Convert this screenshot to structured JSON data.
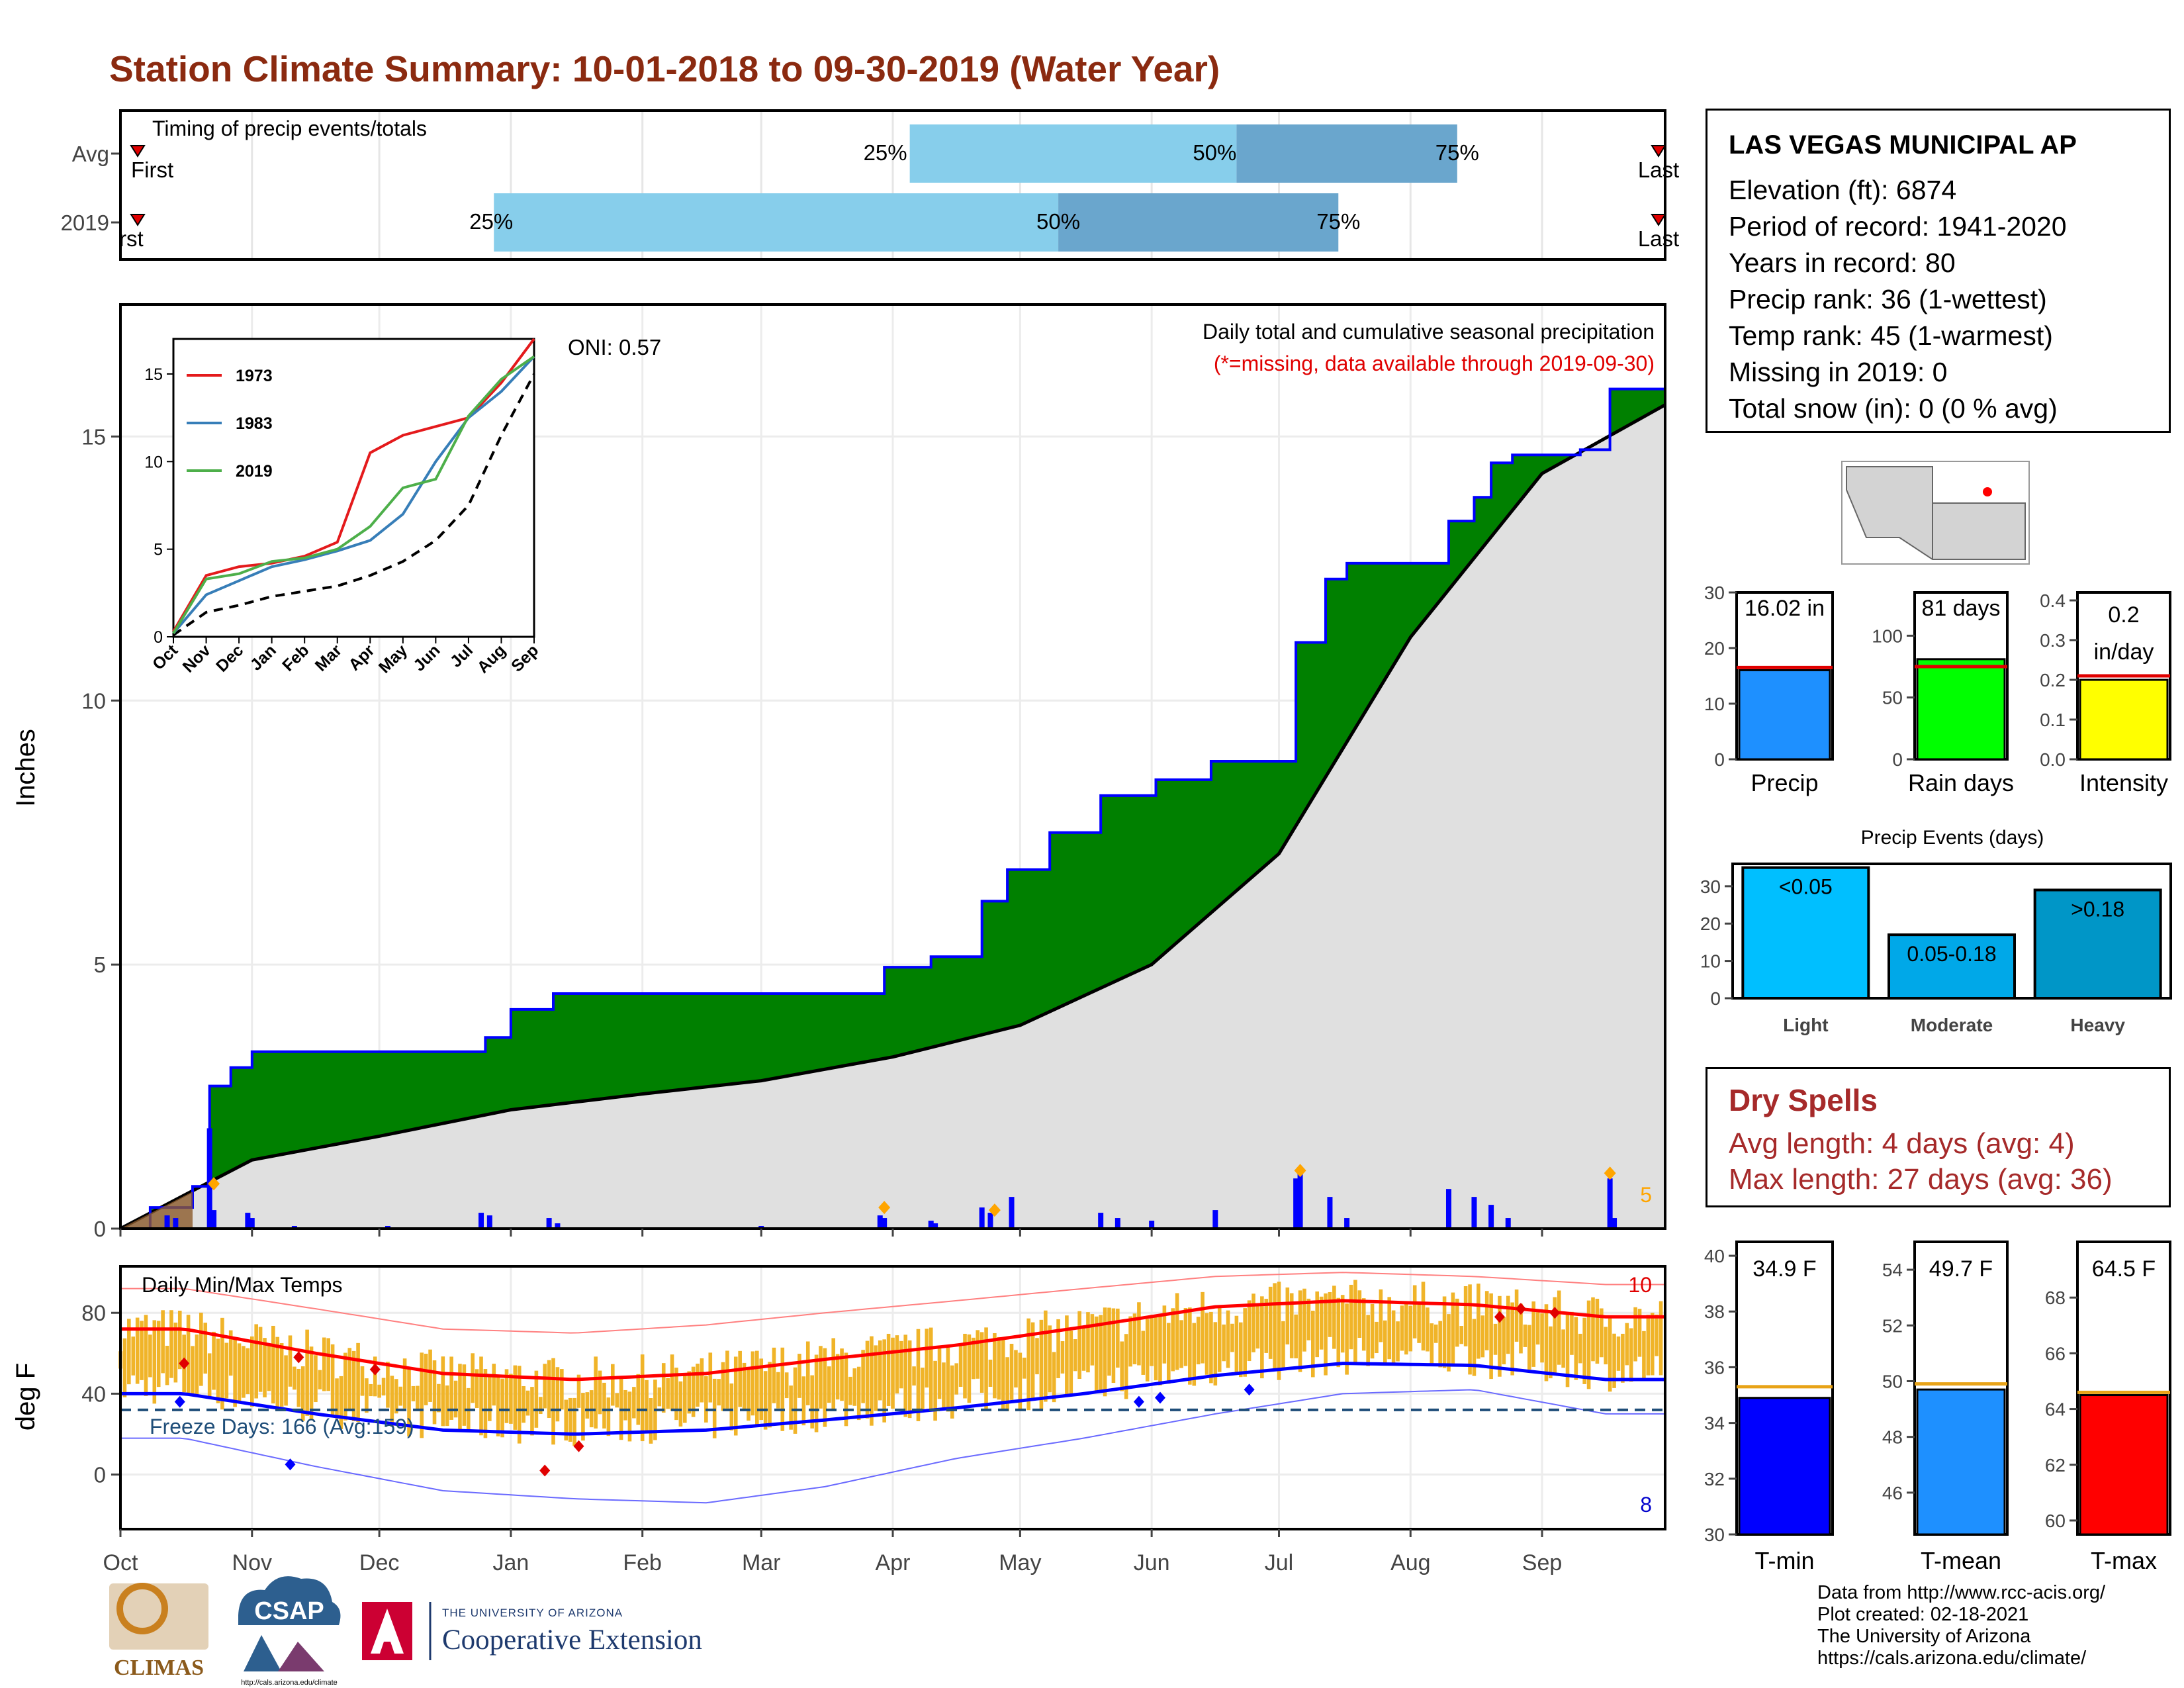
{
  "title": "Station Climate Summary: 10-01-2018 to 09-30-2019 (Water Year)",
  "station": {
    "name": "LAS VEGAS MUNICIPAL AP",
    "lines": [
      "Elevation (ft): 6874",
      "Period of record: 1941-2020",
      "Years in record: 80",
      "Precip rank: 36 (1-wettest)",
      "Temp rank: 45 (1-warmest)",
      "Missing in 2019: 0",
      "Total snow (in): 0 (0 % avg)"
    ]
  },
  "dry_spells": {
    "title": "Dry Spells",
    "avg_length": "Avg length: 4 days (avg: 4)",
    "max_length": "Max length: 27 days (avg: 36)"
  },
  "footer": {
    "lines": [
      "Data from http://www.rcc-acis.org/",
      "Plot created: 02-18-2021",
      "The University of Arizona",
      "https://cals.arizona.edu/climate/"
    ]
  },
  "logos": {
    "climas": "CLIMAS",
    "csap": "CSAP",
    "csap_url": "http://cals.arizona.edu/climate",
    "ua_small": "THE UNIVERSITY OF ARIZONA",
    "ua_big": "Cooperative Extension"
  },
  "colors": {
    "title": "#8b2a10",
    "accent_green": "#008000",
    "precip_blue": "#0000ff",
    "normal_gray": "#e0e0e0",
    "timing_light": "#87ceeb",
    "timing_dark": "#6aa6cd",
    "temp_bar": "#f0b429",
    "tmax_line": "#ff0000",
    "tmin_line": "#0000ff",
    "dry_text": "#a62a2a"
  },
  "chart_data": [
    {
      "type": "bar",
      "panel": "timing",
      "title": "Timing of precip events/totals",
      "categories": [
        "Avg",
        "2019"
      ],
      "markers": {
        "first": "First",
        "first_2019": "rst",
        "last": "Last"
      },
      "percentile_labels": [
        "25%",
        "50%",
        "75%"
      ],
      "rows": [
        {
          "label": "Avg",
          "first_date": "2018-10-01",
          "p25": "2019-04-05",
          "p50": "2019-06-21",
          "p75": "2019-08-12",
          "last_date": "2019-09-30"
        },
        {
          "label": "2019",
          "first_date": "2018-10-01",
          "p25": "2018-12-28",
          "p50": "2019-05-10",
          "p75": "2019-07-15",
          "last_date": "2019-09-30"
        }
      ]
    },
    {
      "type": "area",
      "panel": "precipitation",
      "title": "Daily total and cumulative seasonal precipitation",
      "subtitle": "(*=missing, data available through 2019-09-30)",
      "oni": "ONI: 0.57",
      "ylabel": "Inches",
      "ylim": [
        0,
        17.5
      ],
      "yticks": [
        0,
        5,
        10,
        15
      ],
      "count_label": "5",
      "cumulative_2019": [
        [
          "2018-10-01",
          0
        ],
        [
          "2018-10-08",
          0.4
        ],
        [
          "2018-10-18",
          0.8
        ],
        [
          "2018-10-22",
          2.7
        ],
        [
          "2018-10-27",
          3.05
        ],
        [
          "2018-11-01",
          3.35
        ],
        [
          "2018-12-26",
          3.62
        ],
        [
          "2019-01-01",
          4.15
        ],
        [
          "2019-01-11",
          4.45
        ],
        [
          "2019-03-30",
          4.95
        ],
        [
          "2019-04-10",
          5.15
        ],
        [
          "2019-04-22",
          6.2
        ],
        [
          "2019-04-28",
          6.8
        ],
        [
          "2019-05-08",
          7.5
        ],
        [
          "2019-05-20",
          8.2
        ],
        [
          "2019-06-02",
          8.5
        ],
        [
          "2019-06-15",
          8.85
        ],
        [
          "2019-07-05",
          11.1
        ],
        [
          "2019-07-12",
          12.3
        ],
        [
          "2019-07-17",
          12.6
        ],
        [
          "2019-08-10",
          13.4
        ],
        [
          "2019-08-16",
          13.85
        ],
        [
          "2019-08-20",
          14.5
        ],
        [
          "2019-08-25",
          14.65
        ],
        [
          "2019-09-10",
          14.75
        ],
        [
          "2019-09-17",
          15.9
        ],
        [
          "2019-09-30",
          16.02
        ]
      ],
      "cumulative_normal": [
        [
          "2018-10-01",
          0
        ],
        [
          "2018-10-20",
          0.8
        ],
        [
          "2018-11-01",
          1.3
        ],
        [
          "2018-12-01",
          1.75
        ],
        [
          "2019-01-01",
          2.25
        ],
        [
          "2019-02-01",
          2.55
        ],
        [
          "2019-03-01",
          2.8
        ],
        [
          "2019-04-01",
          3.25
        ],
        [
          "2019-05-01",
          3.85
        ],
        [
          "2019-06-01",
          5.0
        ],
        [
          "2019-07-01",
          7.1
        ],
        [
          "2019-08-01",
          11.2
        ],
        [
          "2019-09-01",
          14.3
        ],
        [
          "2019-09-30",
          15.6
        ]
      ],
      "daily": [
        [
          "2018-10-12",
          0.25
        ],
        [
          "2018-10-14",
          0.2
        ],
        [
          "2018-10-22",
          1.9
        ],
        [
          "2018-10-23",
          0.35
        ],
        [
          "2018-10-31",
          0.3
        ],
        [
          "2018-11-01",
          0.2
        ],
        [
          "2018-11-11",
          0.05
        ],
        [
          "2018-12-03",
          0.05
        ],
        [
          "2018-12-25",
          0.3
        ],
        [
          "2018-12-27",
          0.25
        ],
        [
          "2019-01-10",
          0.2
        ],
        [
          "2019-01-12",
          0.1
        ],
        [
          "2019-03-01",
          0.05
        ],
        [
          "2019-03-29",
          0.25
        ],
        [
          "2019-03-30",
          0.2
        ],
        [
          "2019-04-10",
          0.15
        ],
        [
          "2019-04-11",
          0.1
        ],
        [
          "2019-04-22",
          0.4
        ],
        [
          "2019-04-24",
          0.3
        ],
        [
          "2019-04-29",
          0.6
        ],
        [
          "2019-05-20",
          0.3
        ],
        [
          "2019-05-24",
          0.2
        ],
        [
          "2019-06-01",
          0.15
        ],
        [
          "2019-06-16",
          0.35
        ],
        [
          "2019-07-05",
          0.95
        ],
        [
          "2019-07-06",
          1.05
        ],
        [
          "2019-07-13",
          0.6
        ],
        [
          "2019-07-17",
          0.2
        ],
        [
          "2019-08-10",
          0.75
        ],
        [
          "2019-08-16",
          0.6
        ],
        [
          "2019-08-20",
          0.45
        ],
        [
          "2019-08-24",
          0.2
        ],
        [
          "2019-09-17",
          0.95
        ],
        [
          "2019-09-18",
          0.2
        ]
      ],
      "record_markers": [
        [
          "2018-10-23",
          0.85
        ],
        [
          "2019-03-30",
          0.4
        ],
        [
          "2019-04-25",
          0.35
        ],
        [
          "2019-07-06",
          1.1
        ],
        [
          "2019-09-17",
          1.05
        ]
      ],
      "inset": {
        "xticks": [
          "Oct",
          "Nov",
          "Dec",
          "Jan",
          "Feb",
          "Mar",
          "Apr",
          "May",
          "Jun",
          "Jul",
          "Aug",
          "Sep"
        ],
        "yticks": [
          0,
          5,
          10,
          15
        ],
        "ylim": [
          0,
          17
        ],
        "series": [
          {
            "name": "1973",
            "color": "#e41a1c",
            "values": [
              0.3,
              3.5,
              4.0,
              4.2,
              4.6,
              5.4,
              10.5,
              11.5,
              12.0,
              12.5,
              14.5,
              17.0
            ]
          },
          {
            "name": "1983",
            "color": "#377eb8",
            "values": [
              0.2,
              2.4,
              3.2,
              4.0,
              4.4,
              4.9,
              5.5,
              7.0,
              10.0,
              12.5,
              14.0,
              16.0
            ]
          },
          {
            "name": "2019",
            "color": "#4daf4a",
            "values": [
              0.2,
              3.3,
              3.6,
              4.3,
              4.5,
              5.0,
              6.3,
              8.5,
              9.0,
              12.6,
              14.7,
              16.0
            ]
          }
        ],
        "normal": [
          0.1,
          1.4,
          1.8,
          2.3,
          2.6,
          2.9,
          3.5,
          4.3,
          5.5,
          7.5,
          11.5,
          15.0
        ]
      }
    },
    {
      "type": "bar",
      "panel": "temperature",
      "title": "Daily Min/Max Temps",
      "ylabel": "deg F",
      "yticks": [
        0,
        40,
        80
      ],
      "freeze_label": "Freeze Days: 166 (Avg:159)",
      "freeze_line": 32,
      "count_max": "10",
      "count_min": "8",
      "months": [
        "Oct",
        "Nov",
        "Dec",
        "Jan",
        "Feb",
        "Mar",
        "Apr",
        "May",
        "Jun",
        "Jul",
        "Aug",
        "Sep"
      ],
      "normal_max": [
        72,
        60,
        50,
        47,
        50,
        57,
        64,
        73,
        83,
        86,
        84,
        78
      ],
      "normal_min": [
        40,
        30,
        22,
        20,
        22,
        27,
        33,
        40,
        49,
        55,
        54,
        47
      ],
      "record_high": [
        92,
        82,
        72,
        70,
        74,
        80,
        86,
        92,
        98,
        100,
        98,
        94
      ],
      "record_low": [
        18,
        4,
        -8,
        -12,
        -14,
        -6,
        8,
        18,
        30,
        40,
        42,
        30
      ]
    },
    {
      "type": "bar",
      "panel": "precip_total",
      "categories": [
        "Precip"
      ],
      "values": [
        16.02
      ],
      "average": 16.5,
      "label": "16.02 in",
      "ylim": [
        0,
        30
      ],
      "yticks": [
        0,
        10,
        20,
        30
      ],
      "color": "#1e90ff"
    },
    {
      "type": "bar",
      "panel": "rain_days",
      "categories": [
        "Rain days"
      ],
      "values": [
        81
      ],
      "average": 75,
      "label": "81 days",
      "ylim": [
        0,
        135
      ],
      "yticks": [
        0,
        50,
        100
      ],
      "color": "#00ff00"
    },
    {
      "type": "bar",
      "panel": "intensity",
      "categories": [
        "Intensity"
      ],
      "values": [
        0.2
      ],
      "average": 0.21,
      "label": "0.2",
      "label2": "in/day",
      "ylim": [
        0,
        0.42
      ],
      "yticks": [
        0.0,
        0.1,
        0.2,
        0.3,
        0.4
      ],
      "color": "#ffff00"
    },
    {
      "type": "bar",
      "panel": "precip_events",
      "title": "Precip Events (days)",
      "categories": [
        "Light",
        "Moderate",
        "Heavy"
      ],
      "values": [
        35,
        17,
        29
      ],
      "labels": [
        "<0.05",
        "0.05-0.18",
        ">0.18"
      ],
      "colors": [
        "#00bfff",
        "#00a8e8",
        "#0096c7"
      ],
      "ylim": [
        0,
        36
      ],
      "yticks": [
        0,
        10,
        20,
        30
      ]
    },
    {
      "type": "bar",
      "panel": "tmin",
      "categories": [
        "T-min"
      ],
      "values": [
        34.9
      ],
      "average": 35.3,
      "label": "34.9 F",
      "ylim": [
        30,
        40.5
      ],
      "yticks": [
        30,
        32,
        34,
        36,
        38,
        40
      ],
      "color": "#0000ff"
    },
    {
      "type": "bar",
      "panel": "tmean",
      "categories": [
        "T-mean"
      ],
      "values": [
        49.7
      ],
      "average": 49.9,
      "label": "49.7 F",
      "ylim": [
        44.5,
        55
      ],
      "yticks": [
        46,
        48,
        50,
        52,
        54
      ],
      "color": "#1e90ff"
    },
    {
      "type": "bar",
      "panel": "tmax",
      "categories": [
        "T-max"
      ],
      "values": [
        64.5
      ],
      "average": 64.6,
      "label": "64.5 F",
      "ylim": [
        59.5,
        70
      ],
      "yticks": [
        60,
        62,
        64,
        66,
        68
      ],
      "color": "#ff0000"
    }
  ]
}
